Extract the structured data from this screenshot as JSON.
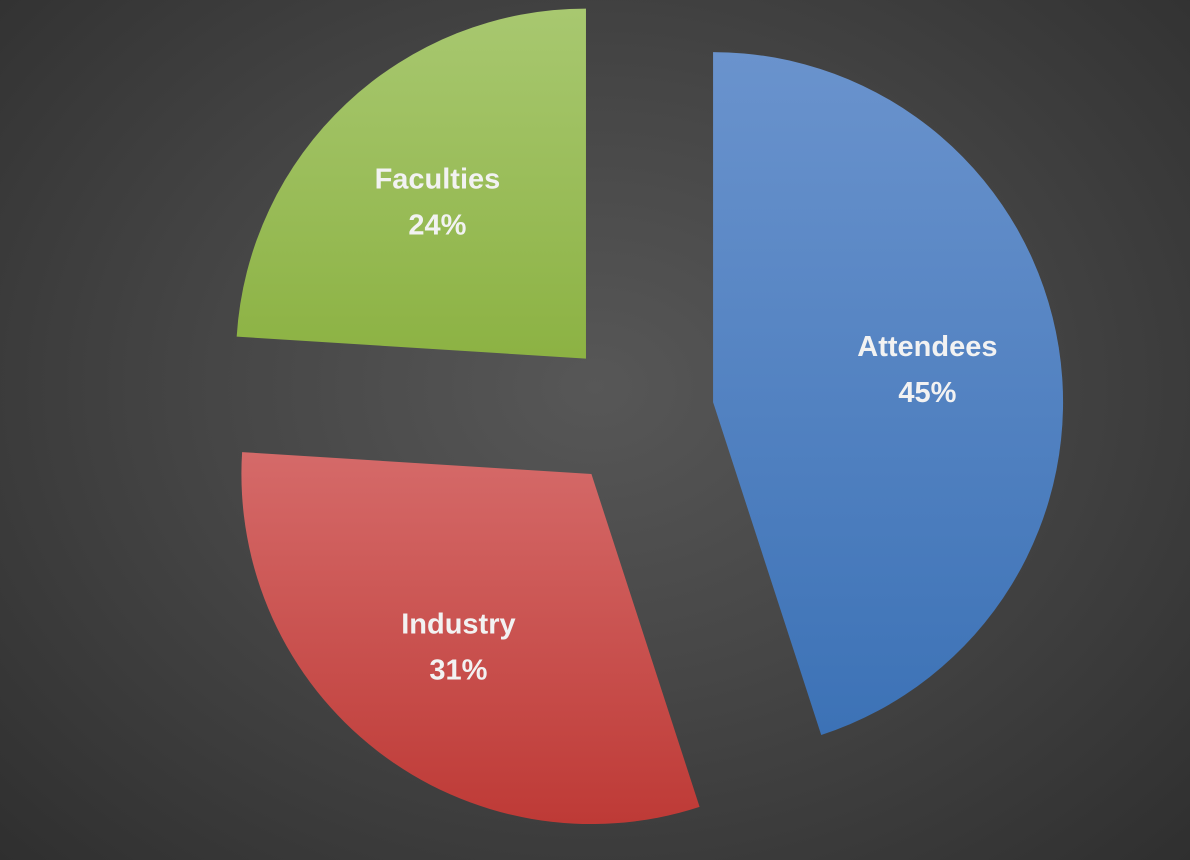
{
  "chart_data": {
    "type": "pie",
    "exploded": true,
    "slices": [
      {
        "label": "Attendees",
        "value": 45,
        "value_label": "45%",
        "color_top": "#6a93cd",
        "color_bottom": "#3c72b6"
      },
      {
        "label": "Industry",
        "value": 31,
        "value_label": "31%",
        "color_top": "#d56a69",
        "color_bottom": "#be3a36"
      },
      {
        "label": "Faculties",
        "value": 24,
        "value_label": "24%",
        "color_top": "#a8c870",
        "color_bottom": "#8cb243"
      }
    ],
    "data_labels": "inside",
    "legend": "none",
    "background": "#4a4a4a"
  }
}
